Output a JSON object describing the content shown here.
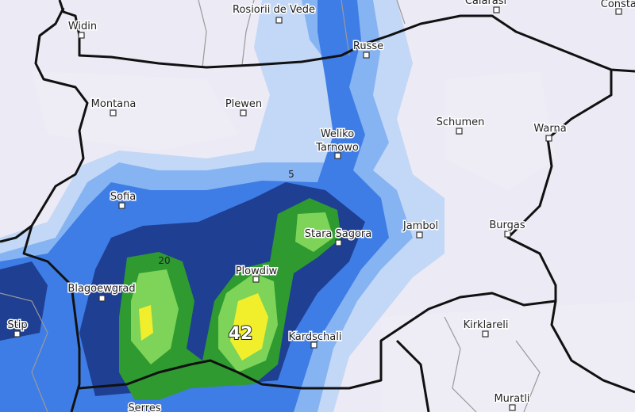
{
  "places": [
    "Widin",
    "Rosiorii de Vede",
    "Calarasi",
    "Constanta",
    "Russe",
    "Montana",
    "Plewen",
    [
      "Weliko",
      "Tarnowo"
    ],
    "Schumen",
    "Warna",
    "Sofia",
    "Jambol",
    "Burgas",
    "Stara Sagora",
    "Plowdiw",
    "Blagoewgrad",
    "Stip",
    "Kardschali",
    "Kirklareli",
    "Serres",
    "Muratli"
  ],
  "contour_labels": [
    "5",
    "20",
    "42"
  ]
}
